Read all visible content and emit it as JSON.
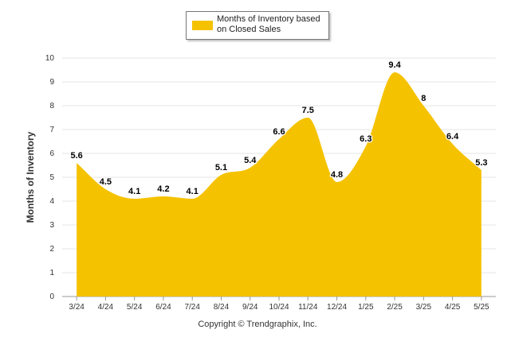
{
  "chart_data": {
    "type": "area",
    "categories": [
      "3/24",
      "4/24",
      "5/24",
      "6/24",
      "7/24",
      "8/24",
      "9/24",
      "10/24",
      "11/24",
      "12/24",
      "1/25",
      "2/25",
      "3/25",
      "4/25",
      "5/25"
    ],
    "series": [
      {
        "name": "Months of Inventory based on Closed Sales",
        "values": [
          5.6,
          4.5,
          4.1,
          4.2,
          4.1,
          5.1,
          5.4,
          6.6,
          7.5,
          4.8,
          6.3,
          9.4,
          8,
          6.4,
          5.3
        ],
        "color": "#f5c200"
      }
    ],
    "ylabel": "Months of Inventory",
    "ylim": [
      0,
      10
    ],
    "yticks": [
      "0",
      "1",
      "2",
      "3",
      "4",
      "5",
      "6",
      "7",
      "8",
      "9",
      "10"
    ],
    "grid": true,
    "legend_position": "top-center",
    "footer": "Copyright © Trendgraphix, Inc."
  }
}
